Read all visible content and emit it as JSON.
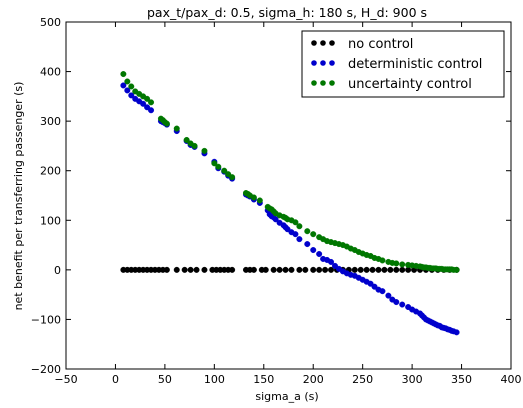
{
  "chart_data": {
    "type": "scatter",
    "title": "pax_t/pax_d: 0.5, sigma_h: 180 s, H_d: 900 s",
    "xlabel": "sigma_a (s)",
    "ylabel": "net benefit per transferring passenger (s)",
    "xlim": [
      -50,
      400
    ],
    "ylim": [
      -200,
      500
    ],
    "xticks": [
      "−50",
      "0",
      "50",
      "100",
      "150",
      "200",
      "250",
      "300",
      "350",
      "400"
    ],
    "xtick_values": [
      -50,
      0,
      50,
      100,
      150,
      200,
      250,
      300,
      350,
      400
    ],
    "yticks": [
      "−200",
      "−100",
      "0",
      "100",
      "200",
      "300",
      "400",
      "500"
    ],
    "ytick_values": [
      -200,
      -100,
      0,
      100,
      200,
      300,
      400,
      500
    ],
    "grid": false,
    "legend_position": "top-right",
    "series": [
      {
        "name": "no control",
        "color": "#000000",
        "x": [
          8,
          12,
          16,
          20,
          24,
          28,
          32,
          36,
          40,
          44,
          48,
          52,
          62,
          70,
          76,
          82,
          90,
          98,
          102,
          106,
          110,
          114,
          118,
          132,
          136,
          140,
          148,
          152,
          160,
          166,
          172,
          178,
          186,
          192,
          200,
          206,
          212,
          218,
          224,
          230,
          236,
          242,
          248,
          254,
          260,
          266,
          272,
          278,
          284,
          290,
          296,
          302,
          308,
          314,
          320,
          326,
          332,
          338,
          345
        ],
        "y": [
          0,
          0,
          0,
          0,
          0,
          0,
          0,
          0,
          0,
          0,
          0,
          0,
          0,
          0,
          0,
          0,
          0,
          0,
          0,
          0,
          0,
          0,
          0,
          0,
          0,
          0,
          0,
          0,
          0,
          0,
          0,
          0,
          0,
          0,
          0,
          0,
          0,
          0,
          0,
          0,
          0,
          0,
          0,
          0,
          0,
          0,
          0,
          0,
          0,
          0,
          0,
          0,
          0,
          0,
          0,
          0,
          0,
          0,
          0
        ]
      },
      {
        "name": "deterministic control",
        "color": "#0000cc",
        "x": [
          8,
          12,
          16,
          20,
          24,
          28,
          32,
          36,
          46,
          48,
          50,
          52,
          62,
          72,
          76,
          80,
          90,
          100,
          104,
          110,
          114,
          118,
          132,
          134,
          136,
          140,
          146,
          154,
          156,
          158,
          160,
          162,
          166,
          170,
          172,
          174,
          178,
          182,
          186,
          194,
          200,
          206,
          210,
          214,
          218,
          222,
          226,
          230,
          234,
          238,
          242,
          246,
          250,
          254,
          258,
          262,
          266,
          270,
          276,
          280,
          284,
          290,
          296,
          300,
          304,
          308,
          310,
          312,
          314,
          316,
          318,
          320,
          322,
          324,
          326,
          328,
          330,
          332,
          334,
          336,
          338,
          340,
          342,
          345
        ],
        "y": [
          372,
          362,
          352,
          345,
          340,
          335,
          328,
          322,
          300,
          298,
          296,
          293,
          280,
          260,
          252,
          248,
          235,
          218,
          205,
          198,
          190,
          184,
          152,
          150,
          148,
          142,
          135,
          120,
          112,
          108,
          106,
          102,
          95,
          90,
          86,
          82,
          76,
          72,
          62,
          52,
          40,
          32,
          22,
          20,
          16,
          8,
          2,
          -3,
          -7,
          -10,
          -12,
          -16,
          -20,
          -24,
          -28,
          -34,
          -40,
          -43,
          -52,
          -60,
          -65,
          -70,
          -75,
          -80,
          -84,
          -88,
          -92,
          -96,
          -100,
          -102,
          -104,
          -106,
          -108,
          -110,
          -112,
          -113,
          -116,
          -117,
          -118,
          -120,
          -121,
          -123,
          -124,
          -126
        ]
      },
      {
        "name": "uncertainty control",
        "color": "#007700",
        "x": [
          8,
          12,
          16,
          20,
          24,
          28,
          32,
          36,
          46,
          48,
          50,
          52,
          62,
          72,
          76,
          80,
          90,
          100,
          104,
          110,
          114,
          118,
          132,
          134,
          136,
          140,
          146,
          154,
          156,
          158,
          160,
          162,
          166,
          170,
          172,
          174,
          178,
          182,
          186,
          194,
          200,
          206,
          210,
          214,
          218,
          222,
          226,
          230,
          234,
          238,
          242,
          246,
          250,
          254,
          258,
          262,
          266,
          270,
          276,
          280,
          284,
          290,
          296,
          300,
          304,
          308,
          310,
          312,
          314,
          316,
          318,
          320,
          322,
          324,
          326,
          328,
          330,
          332,
          334,
          336,
          338,
          340,
          342,
          345
        ],
        "y": [
          395,
          380,
          370,
          360,
          355,
          350,
          345,
          338,
          305,
          302,
          298,
          295,
          285,
          262,
          255,
          250,
          240,
          215,
          208,
          200,
          193,
          187,
          155,
          153,
          150,
          146,
          140,
          127,
          124,
          122,
          118,
          114,
          110,
          107,
          105,
          102,
          100,
          96,
          88,
          78,
          72,
          66,
          62,
          58,
          56,
          54,
          52,
          50,
          47,
          43,
          40,
          36,
          33,
          30,
          28,
          24,
          22,
          19,
          16,
          14,
          13,
          11,
          10,
          9,
          8,
          7,
          6,
          5,
          5,
          4,
          4,
          3,
          3,
          3,
          2,
          2,
          2,
          1,
          1,
          1,
          1,
          1,
          0,
          0
        ]
      }
    ]
  }
}
